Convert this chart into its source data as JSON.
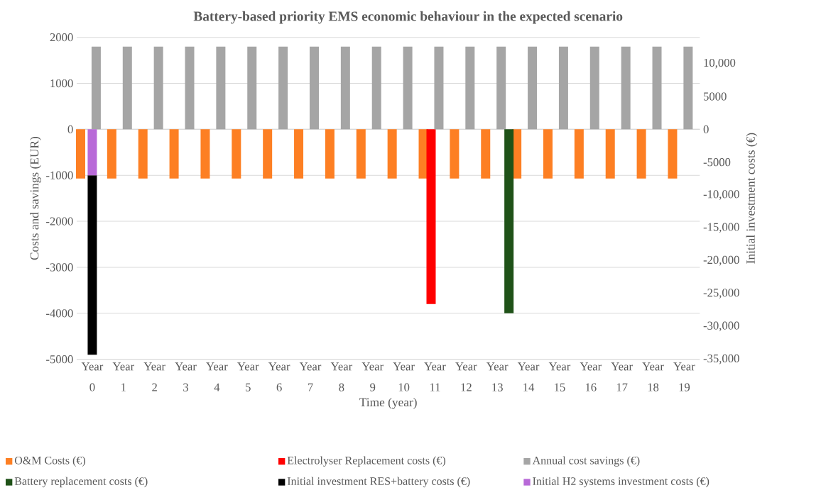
{
  "chart_data": {
    "type": "bar",
    "title": "Battery-based priority EMS economic behaviour in the expected scenario",
    "xlabel": "Time (year)",
    "ylabel": "Costs and savings (EUR)",
    "y2label": "Initial investment costs (€)",
    "categories": [
      "Year 0",
      "Year 1",
      "Year 2",
      "Year 3",
      "Year 4",
      "Year 5",
      "Year 6",
      "Year 7",
      "Year 8",
      "Year 9",
      "Year 10",
      "Year 11",
      "Year 12",
      "Year 13",
      "Year 14",
      "Year 15",
      "Year 16",
      "Year 17",
      "Year 18",
      "Year 19"
    ],
    "ylim": [
      -5000,
      2000
    ],
    "yticks": [
      -5000,
      -4000,
      -3000,
      -2000,
      -1000,
      0,
      1000,
      2000
    ],
    "y2lim": [
      -35000,
      14000
    ],
    "y2ticks": [
      {
        "value": -35000,
        "label": "-35,000"
      },
      {
        "value": -30000,
        "label": "-30,000"
      },
      {
        "value": -25000,
        "label": "-25,000"
      },
      {
        "value": -20000,
        "label": "-20,000"
      },
      {
        "value": -15000,
        "label": "-15,000"
      },
      {
        "value": -10000,
        "label": "-10,000"
      },
      -5000,
      0,
      5000,
      {
        "value": 10000,
        "label": "10,000"
      }
    ],
    "grid": "y",
    "legend": "bottom",
    "series": [
      {
        "name": "O&M Costs (€)",
        "color": "#fd7f23",
        "values": [
          -1070,
          -1070,
          -1070,
          -1070,
          -1070,
          -1070,
          -1070,
          -1070,
          -1070,
          -1070,
          -1070,
          -1070,
          -1070,
          -1070,
          -1070,
          -1070,
          -1070,
          -1070,
          -1070,
          -1070
        ]
      },
      {
        "name": "Electrolyser Replacement costs (€)",
        "color": "#ff0000",
        "values": [
          null,
          null,
          null,
          null,
          null,
          null,
          null,
          null,
          null,
          null,
          null,
          -3800,
          null,
          null,
          null,
          null,
          null,
          null,
          null,
          null
        ]
      },
      {
        "name": "Annual cost savings (€)",
        "color": "#a5a5a5",
        "values": [
          1800,
          1800,
          1800,
          1800,
          1800,
          1800,
          1800,
          1800,
          1800,
          1800,
          1800,
          1800,
          1800,
          1800,
          1800,
          1800,
          1800,
          1800,
          1800,
          1800
        ]
      },
      {
        "name": "Battery replacement costs (€)",
        "color": "#1f5218",
        "values": [
          null,
          null,
          null,
          null,
          null,
          null,
          null,
          null,
          null,
          null,
          null,
          null,
          null,
          -4000,
          null,
          null,
          null,
          null,
          null,
          null
        ]
      },
      {
        "name": "Initial investment RES+battery costs (€)",
        "color": "#000000",
        "axis": "y2",
        "base": [
          -7000,
          null,
          null,
          null,
          null,
          null,
          null,
          null,
          null,
          null,
          null,
          null,
          null,
          null,
          null,
          null,
          null,
          null,
          null,
          null
        ],
        "values": [
          -27300,
          null,
          null,
          null,
          null,
          null,
          null,
          null,
          null,
          null,
          null,
          null,
          null,
          null,
          null,
          null,
          null,
          null,
          null,
          null
        ]
      },
      {
        "name": "Initial H2 systems investment costs (€)",
        "color": "#b86ad8",
        "axis": "y2",
        "values": [
          -7000,
          null,
          null,
          null,
          null,
          null,
          null,
          null,
          null,
          null,
          null,
          null,
          null,
          null,
          null,
          null,
          null,
          null,
          null,
          null
        ]
      }
    ]
  }
}
